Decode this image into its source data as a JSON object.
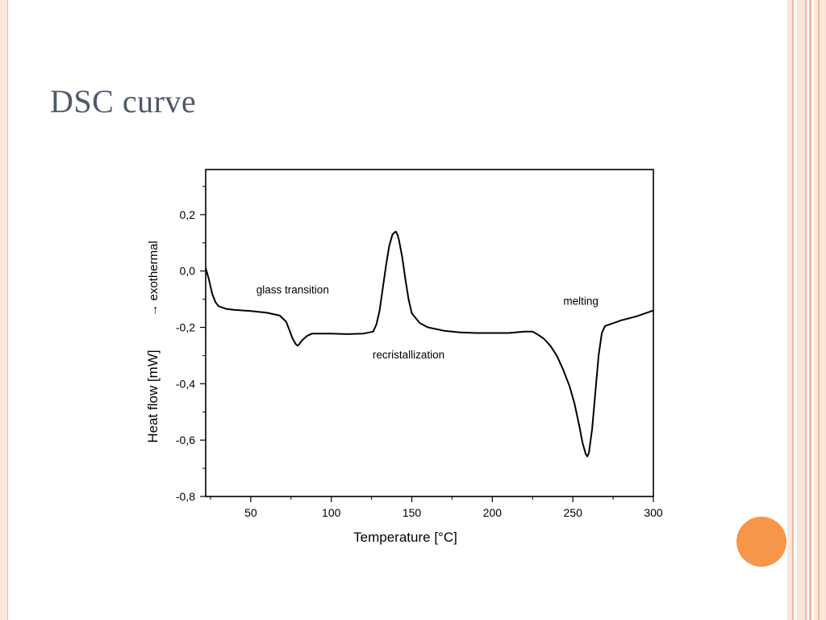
{
  "slide": {
    "title": "DSC curve",
    "accent_color": "#f79548",
    "border_color": "#f2b7a0"
  },
  "chart_data": {
    "type": "line",
    "title": "",
    "xlabel": "Temperature [°C]",
    "ylabel": "Heat flow [mW]",
    "ylabel2": "→ exothermal",
    "xlim": [
      22,
      300
    ],
    "ylim": [
      -0.8,
      0.36
    ],
    "x_ticks": [
      50,
      100,
      150,
      200,
      250,
      300
    ],
    "y_ticks": [
      0.2,
      0.0,
      -0.2,
      -0.4,
      -0.6,
      -0.8
    ],
    "x_tick_labels": [
      "50",
      "100",
      "150",
      "200",
      "250",
      "300"
    ],
    "y_tick_labels": [
      "0,2",
      "0,0",
      "-0,2",
      "-0,4",
      "-0,6",
      "-0,8"
    ],
    "grid": false,
    "line_color": "#000000",
    "annotations": [
      {
        "text": "glass transition",
        "x": 76,
        "y": -0.08
      },
      {
        "text": "recristallization",
        "x": 148,
        "y": -0.31
      },
      {
        "text": "melting",
        "x": 255,
        "y": -0.12
      }
    ],
    "series": [
      {
        "x": [
          22,
          24,
          26,
          28,
          30,
          35,
          40,
          50,
          60,
          68,
          72,
          74,
          76,
          78,
          79,
          80,
          82,
          85,
          88,
          92,
          100,
          110,
          120,
          126,
          128,
          130,
          132,
          134,
          136,
          138,
          140,
          141,
          142,
          144,
          146,
          148,
          150,
          155,
          160,
          170,
          180,
          190,
          200,
          210,
          220,
          225,
          228,
          232,
          236,
          240,
          244,
          248,
          251,
          254,
          256,
          258,
          259,
          260,
          262,
          264,
          266,
          268,
          270,
          275,
          280,
          290,
          300
        ],
        "y": [
          0.01,
          -0.03,
          -0.08,
          -0.11,
          -0.125,
          -0.135,
          -0.138,
          -0.142,
          -0.148,
          -0.158,
          -0.18,
          -0.21,
          -0.24,
          -0.26,
          -0.265,
          -0.26,
          -0.245,
          -0.23,
          -0.222,
          -0.222,
          -0.222,
          -0.224,
          -0.222,
          -0.215,
          -0.19,
          -0.14,
          -0.06,
          0.02,
          0.09,
          0.13,
          0.14,
          0.13,
          0.11,
          0.05,
          -0.03,
          -0.1,
          -0.15,
          -0.185,
          -0.2,
          -0.212,
          -0.218,
          -0.22,
          -0.22,
          -0.22,
          -0.215,
          -0.215,
          -0.225,
          -0.24,
          -0.265,
          -0.3,
          -0.35,
          -0.41,
          -0.47,
          -0.55,
          -0.61,
          -0.65,
          -0.658,
          -0.645,
          -0.56,
          -0.43,
          -0.3,
          -0.22,
          -0.195,
          -0.185,
          -0.175,
          -0.16,
          -0.14
        ]
      }
    ]
  }
}
